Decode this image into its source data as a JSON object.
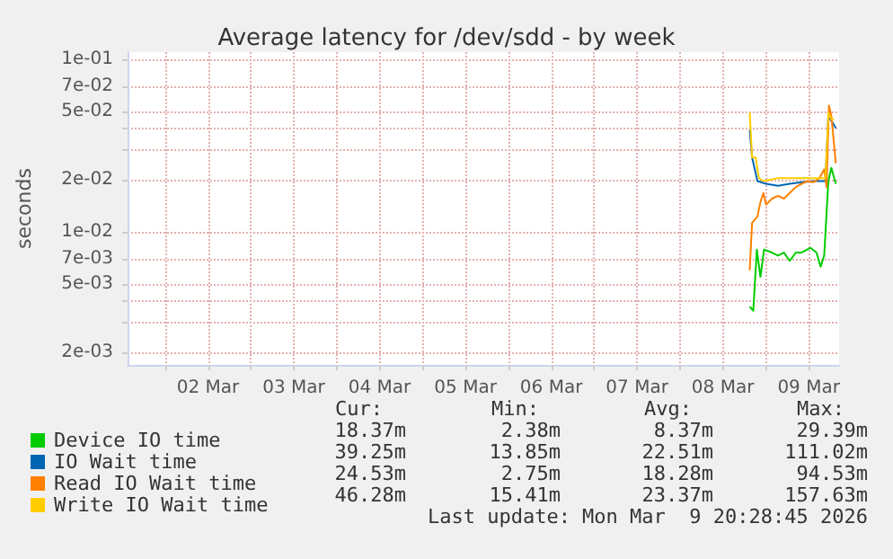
{
  "chart_data": {
    "type": "line",
    "title": "Average latency for /dev/sdd - by week",
    "ylabel": "seconds",
    "log": "y",
    "grid": true,
    "legend": "bottom left",
    "marker": "none",
    "line_style": "solid",
    "xlim": [
      "2026-03-01T13:30",
      "2026-03-09T20:30"
    ],
    "xticks": [
      {
        "value": "2026-03-02T00:00",
        "label": null
      },
      {
        "value": "2026-03-02T12:00",
        "label": "02 Mar"
      },
      {
        "value": "2026-03-03T00:00",
        "label": null
      },
      {
        "value": "2026-03-03T12:00",
        "label": "03 Mar"
      },
      {
        "value": "2026-03-04T00:00",
        "label": null
      },
      {
        "value": "2026-03-04T12:00",
        "label": "04 Mar"
      },
      {
        "value": "2026-03-05T00:00",
        "label": null
      },
      {
        "value": "2026-03-05T12:00",
        "label": "05 Mar"
      },
      {
        "value": "2026-03-06T00:00",
        "label": null
      },
      {
        "value": "2026-03-06T12:00",
        "label": "06 Mar"
      },
      {
        "value": "2026-03-07T00:00",
        "label": null
      },
      {
        "value": "2026-03-07T12:00",
        "label": "07 Mar"
      },
      {
        "value": "2026-03-08T00:00",
        "label": null
      },
      {
        "value": "2026-03-08T12:00",
        "label": "08 Mar"
      },
      {
        "value": "2026-03-09T00:00",
        "label": null
      },
      {
        "value": "2026-03-09T12:00",
        "label": "09 Mar"
      }
    ],
    "ylim": [
      0.0017,
      0.11
    ],
    "yticks": [
      {
        "value": 0.002,
        "label": "2e-03"
      },
      {
        "value": 0.003,
        "label": null
      },
      {
        "value": 0.004,
        "label": null
      },
      {
        "value": 0.005,
        "label": "5e-03"
      },
      {
        "value": 0.007,
        "label": "7e-03"
      },
      {
        "value": 0.01,
        "label": "1e-02"
      },
      {
        "value": 0.02,
        "label": "2e-02"
      },
      {
        "value": 0.03,
        "label": null
      },
      {
        "value": 0.04,
        "label": null
      },
      {
        "value": 0.05,
        "label": "5e-02"
      },
      {
        "value": 0.07,
        "label": "7e-02"
      },
      {
        "value": 0.1,
        "label": "1e-01"
      }
    ],
    "series": [
      {
        "name": "Device IO time",
        "color": "#00cc00",
        "x": [
          "2026-03-08T19:30",
          "2026-03-08T20:30",
          "2026-03-08T21:30",
          "2026-03-08T22:30",
          "2026-03-08T23:30",
          "2026-03-09T01:45",
          "2026-03-09T03:25",
          "2026-03-09T05:05",
          "2026-03-09T06:40",
          "2026-03-09T08:25",
          "2026-03-09T10:00",
          "2026-03-09T12:30",
          "2026-03-09T14:10",
          "2026-03-09T15:20",
          "2026-03-09T16:20",
          "2026-03-09T17:30",
          "2026-03-09T18:20",
          "2026-03-09T19:35"
        ],
        "values": [
          0.0037,
          0.0035,
          0.0079,
          0.0055,
          0.0079,
          0.0076,
          0.0073,
          0.0076,
          0.0068,
          0.0076,
          0.0076,
          0.0081,
          0.0076,
          0.0063,
          0.0073,
          0.0197,
          0.0235,
          0.019
        ]
      },
      {
        "name": "IO Wait time",
        "color": "#0066b3",
        "x": [
          "2026-03-08T19:30",
          "2026-03-08T20:10",
          "2026-03-08T21:40",
          "2026-03-09T00:05",
          "2026-03-09T03:25",
          "2026-03-09T06:40",
          "2026-03-09T10:00",
          "2026-03-09T13:20",
          "2026-03-09T16:40",
          "2026-03-09T17:30",
          "2026-03-09T19:35"
        ],
        "values": [
          0.039,
          0.027,
          0.0197,
          0.019,
          0.0185,
          0.019,
          0.0194,
          0.0197,
          0.0197,
          0.047,
          0.04
        ]
      },
      {
        "name": "Read IO Wait time",
        "color": "#ff8000",
        "x": [
          "2026-03-08T19:30",
          "2026-03-08T20:10",
          "2026-03-08T21:40",
          "2026-03-08T22:30",
          "2026-03-08T23:20",
          "2026-03-09T00:05",
          "2026-03-09T01:45",
          "2026-03-09T03:25",
          "2026-03-09T05:05",
          "2026-03-09T06:40",
          "2026-03-09T08:25",
          "2026-03-09T10:00",
          "2026-03-09T11:40",
          "2026-03-09T13:20",
          "2026-03-09T15:00",
          "2026-03-09T16:20",
          "2026-03-09T17:00",
          "2026-03-09T17:40",
          "2026-03-09T18:20",
          "2026-03-09T19:35"
        ],
        "values": [
          0.006,
          0.0113,
          0.0123,
          0.0149,
          0.0168,
          0.0144,
          0.0156,
          0.0162,
          0.0156,
          0.0168,
          0.0182,
          0.019,
          0.0197,
          0.0194,
          0.0205,
          0.023,
          0.0182,
          0.054,
          0.047,
          0.025
        ]
      },
      {
        "name": "Write IO Wait time",
        "color": "#ffcc00",
        "x": [
          "2026-03-08T19:30",
          "2026-03-08T20:10",
          "2026-03-08T21:10",
          "2026-03-08T22:05",
          "2026-03-08T23:20",
          "2026-03-09T03:25",
          "2026-03-09T08:25",
          "2026-03-09T13:20",
          "2026-03-09T16:40",
          "2026-03-09T17:30",
          "2026-03-09T18:20",
          "2026-03-09T19:05"
        ],
        "values": [
          0.049,
          0.027,
          0.027,
          0.0205,
          0.0197,
          0.0205,
          0.0205,
          0.0205,
          0.0205,
          0.049,
          0.045,
          0.045
        ]
      }
    ],
    "annotations": [
      "Cur:",
      "Min:",
      "Avg:",
      "Max:",
      "18.37m",
      "2.38m",
      "8.37m",
      "29.39m",
      "39.25m",
      "13.85m",
      "22.51m",
      "111.02m",
      "24.53m",
      "2.75m",
      "18.28m",
      "94.53m",
      "46.28m",
      "15.41m",
      "23.37m",
      "157.63m",
      "Last update: Mon Mar  9 20:28:45 2026"
    ]
  }
}
